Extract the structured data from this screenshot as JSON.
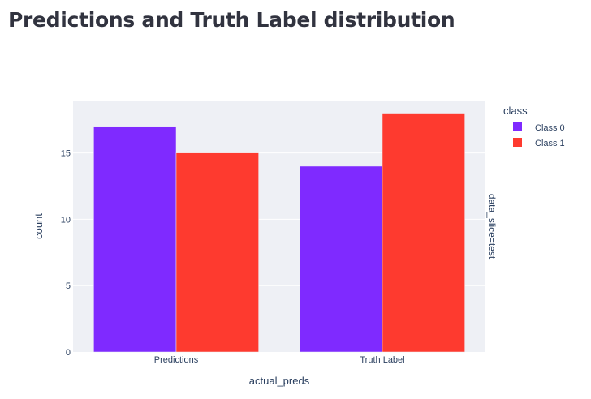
{
  "page": {
    "title": "Predictions and Truth Label distribution"
  },
  "chart_data": {
    "type": "bar",
    "barmode": "group",
    "categories": [
      "Predictions",
      "Truth Label"
    ],
    "series": [
      {
        "name": "Class 0",
        "values": [
          17,
          14
        ],
        "color": "#7f2aff"
      },
      {
        "name": "Class 1",
        "values": [
          15,
          18
        ],
        "color": "#fe3a2f"
      }
    ],
    "xlabel": "actual_preds",
    "ylabel": "count",
    "ylim": [
      0,
      18.95
    ],
    "yticks": [
      0,
      5,
      10,
      15
    ],
    "legend_title": "class",
    "legend_position": "right",
    "facet_label": "data_slice=test",
    "grid": true,
    "plot_bgcolor": "#e5ecf6"
  }
}
